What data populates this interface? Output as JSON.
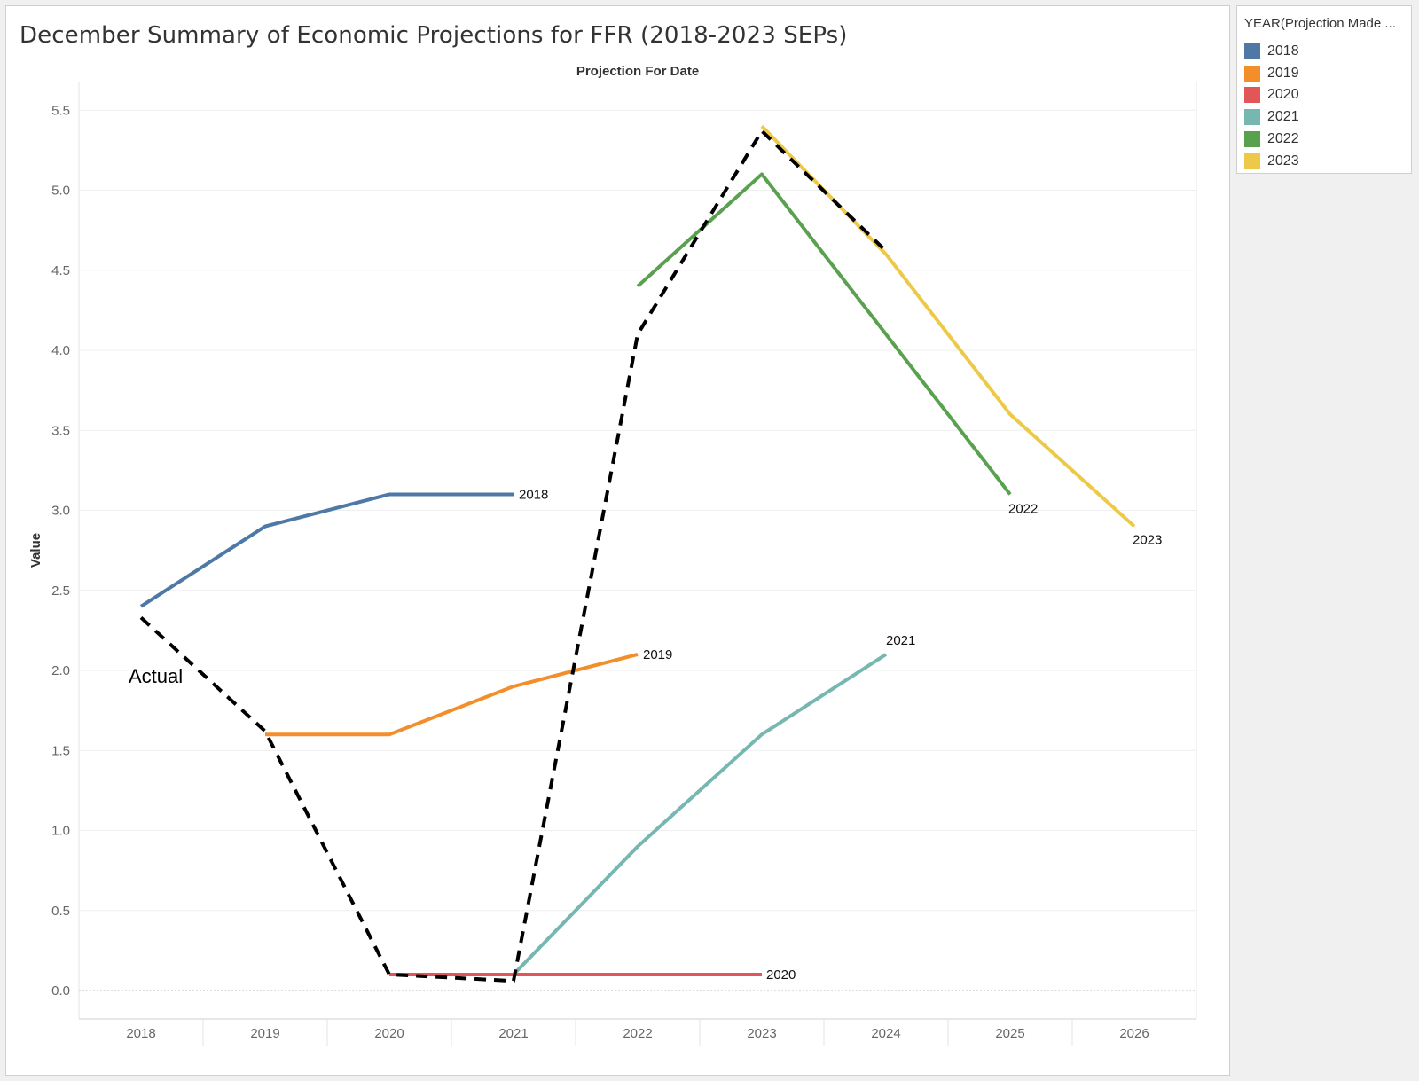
{
  "chart_data": {
    "type": "line",
    "title": "December Summary of Economic Projections for FFR (2018-2023 SEPs)",
    "top_axis_label": "Projection For Date",
    "xlabel": "",
    "ylabel": "Value",
    "categories": [
      "2018",
      "2019",
      "2020",
      "2021",
      "2022",
      "2023",
      "2024",
      "2025",
      "2026"
    ],
    "ylim": [
      0,
      5.5
    ],
    "yticks": [
      "0.0",
      "0.5",
      "1.0",
      "1.5",
      "2.0",
      "2.5",
      "3.0",
      "3.5",
      "4.0",
      "4.5",
      "5.0",
      "5.5"
    ],
    "grid": true,
    "legend": {
      "title": "YEAR(Projection  Made ...",
      "position": "top-right"
    },
    "series": [
      {
        "name": "2018",
        "color": "#4e79a7",
        "x": [
          "2018",
          "2019",
          "2020",
          "2021"
        ],
        "values": [
          2.4,
          2.9,
          3.1,
          3.1
        ],
        "end_label": "2018"
      },
      {
        "name": "2019",
        "color": "#f28e2b",
        "x": [
          "2019",
          "2020",
          "2021",
          "2022"
        ],
        "values": [
          1.6,
          1.6,
          1.9,
          2.1
        ],
        "end_label": "2019"
      },
      {
        "name": "2020",
        "color": "#e15759",
        "x": [
          "2020",
          "2021",
          "2022",
          "2023"
        ],
        "values": [
          0.1,
          0.1,
          0.1,
          0.1
        ],
        "end_label": "2020"
      },
      {
        "name": "2021",
        "color": "#76b7b2",
        "x": [
          "2021",
          "2022",
          "2023",
          "2024"
        ],
        "values": [
          0.1,
          0.9,
          1.6,
          2.1
        ],
        "end_label": "2021"
      },
      {
        "name": "2022",
        "color": "#59a14f",
        "x": [
          "2022",
          "2023",
          "2024",
          "2025"
        ],
        "values": [
          4.4,
          5.1,
          4.1,
          3.1
        ],
        "end_label": "2022"
      },
      {
        "name": "2023",
        "color": "#edc948",
        "x": [
          "2023",
          "2024",
          "2025",
          "2026"
        ],
        "values": [
          5.4,
          4.6,
          3.6,
          2.9
        ],
        "end_label": "2023"
      }
    ],
    "actual": {
      "name": "Actual",
      "label": "Actual",
      "color": "#000000",
      "style": "dashed",
      "x": [
        "2018",
        "2019",
        "2020",
        "2021",
        "2022",
        "2023",
        "2024"
      ],
      "values": [
        2.33,
        1.62,
        0.1,
        0.06,
        4.1,
        5.37,
        4.62
      ]
    }
  }
}
